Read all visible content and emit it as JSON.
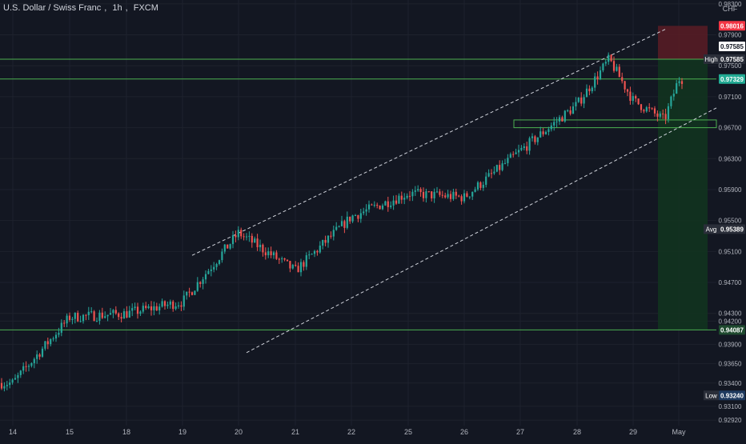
{
  "header": {
    "symbol": "U.S. Dollar / Swiss Franc",
    "interval": "1h",
    "exchange": "FXCM",
    "currency": "CHF"
  },
  "colors": {
    "background": "#131722",
    "up": "#26a69a",
    "down": "#ef5350",
    "grid": "#1e222d",
    "axis_text": "#b2b5be",
    "level_line": "#4caf50",
    "channel": "#d1d4dc",
    "stop_zone": "#5a1c24",
    "target_zone": "#12331f",
    "stop_tag": "#f23645",
    "current_tag": "#22ab94",
    "label_bg": "#2a2e39",
    "low_tag": "#1e3a5f"
  },
  "chart_data": {
    "type": "candlestick",
    "title": "U.S. Dollar / Swiss Franc, 1h, FXCM",
    "x_ticks": [
      "14",
      "15",
      "18",
      "19",
      "20",
      "21",
      "22",
      "25",
      "26",
      "27",
      "28",
      "29",
      "May"
    ],
    "y_ticks": [
      "0.98300",
      "0.97900",
      "0.97500",
      "0.97100",
      "0.96700",
      "0.96300",
      "0.95900",
      "0.95500",
      "0.95100",
      "0.94700",
      "0.94300",
      "0.94200",
      "0.93900",
      "0.93650",
      "0.93400",
      "0.93100",
      "0.92920"
    ],
    "ylim": [
      0.9285,
      0.9835
    ],
    "close_path": [
      [
        "14",
        0.934
      ],
      [
        "15",
        0.9425
      ],
      [
        "18",
        0.943
      ],
      [
        "19",
        0.9445
      ],
      [
        "20",
        0.9534
      ],
      [
        "21",
        0.9485
      ],
      [
        "22",
        0.9555
      ],
      [
        "25",
        0.9585
      ],
      [
        "26",
        0.958
      ],
      [
        "27",
        0.964
      ],
      [
        "28",
        0.97
      ],
      [
        "28.5",
        0.97585
      ],
      [
        "29",
        0.9705
      ],
      [
        "29.5",
        0.968
      ],
      [
        "May",
        0.9733
      ]
    ],
    "high_close": 0.97585,
    "horizontal_levels": [
      0.97585,
      0.97329,
      0.94087
    ],
    "trading_range": [
      0.968,
      0.967
    ],
    "channel": {
      "upper": [
        [
          "20",
          0.9534
        ],
        [
          "28.5",
          0.9795
        ]
      ],
      "lower": [
        [
          "20",
          0.94
        ],
        [
          "May",
          0.971
        ]
      ]
    },
    "position": {
      "stop": 0.98016,
      "entry": 0.97585,
      "target": 0.94087
    },
    "price_labels": {
      "stop": "0.98016",
      "reference": "0.97585",
      "high": "0.97585",
      "current": "0.97329",
      "avg": "0.95389",
      "target": "0.94087",
      "low": "0.93240"
    },
    "label_names": {
      "high": "High",
      "avg": "Avg",
      "low": "Low"
    }
  }
}
